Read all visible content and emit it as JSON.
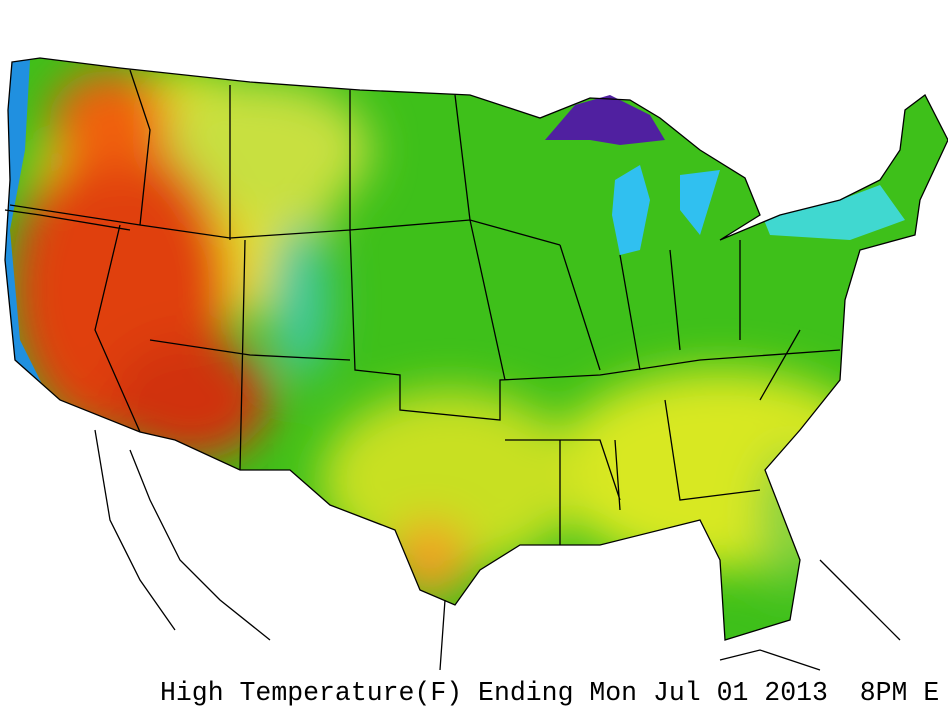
{
  "caption": "High Temperature(F) Ending Mon Jul 01 2013  8PM E"
}
